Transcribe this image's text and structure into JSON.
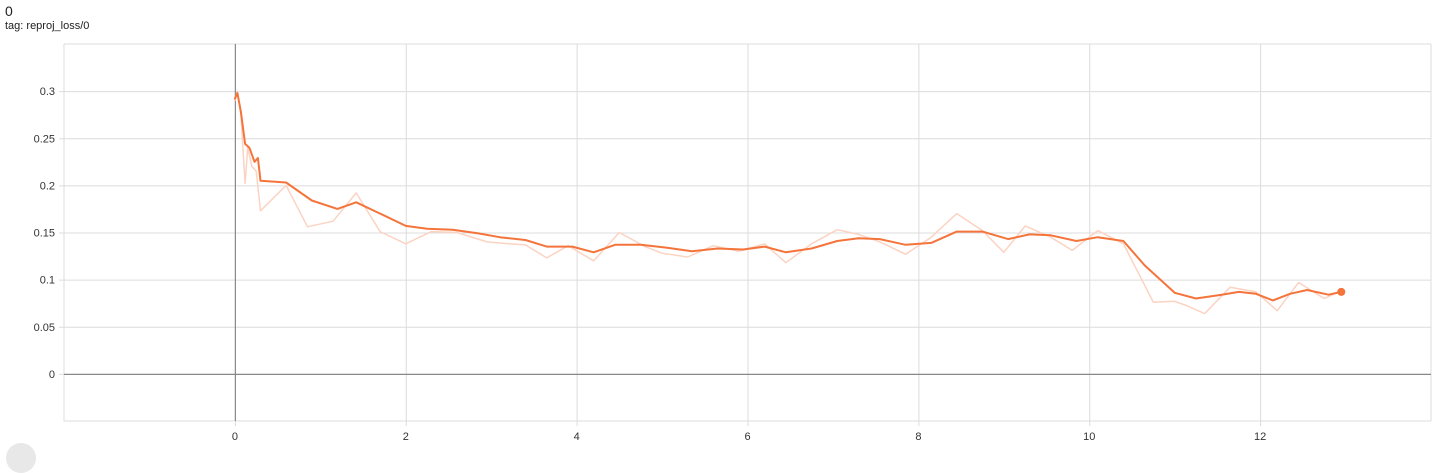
{
  "card": {
    "title": "0",
    "tag": "tag: reproj_loss/0"
  },
  "colors": {
    "smoothed": "#f4743b",
    "raw": "#fbd3c2",
    "grid": "#dcdcdc",
    "axis": "#888888"
  },
  "chart_data": {
    "type": "line",
    "title": "",
    "xlabel": "",
    "ylabel": "",
    "xlim": [
      -2,
      14
    ],
    "ylim": [
      -0.05,
      0.35
    ],
    "xticks": [
      0,
      2,
      4,
      6,
      8,
      10,
      12
    ],
    "yticks": [
      0,
      0.05,
      0.1,
      0.15,
      0.2,
      0.25,
      0.3
    ],
    "xtick_labels": [
      "0",
      "2",
      "4",
      "6",
      "8",
      "10",
      "12"
    ],
    "ytick_labels": [
      "0",
      "0.05",
      "0.1",
      "0.15",
      "0.2",
      "0.25",
      "0.3"
    ],
    "grid": true,
    "series": [
      {
        "role": "raw",
        "x": [
          0.0,
          0.03,
          0.07,
          0.12,
          0.15,
          0.2,
          0.25,
          0.3,
          0.6,
          0.85,
          1.15,
          1.42,
          1.7,
          2.0,
          2.3,
          2.6,
          2.95,
          3.2,
          3.4,
          3.65,
          3.9,
          4.2,
          4.5,
          4.8,
          5.0,
          5.3,
          5.6,
          5.9,
          6.2,
          6.45,
          6.75,
          7.05,
          7.3,
          7.55,
          7.85,
          8.15,
          8.45,
          8.75,
          9.0,
          9.25,
          9.55,
          9.8,
          10.1,
          10.4,
          10.75,
          11.0,
          11.15,
          11.35,
          11.65,
          11.95,
          12.2,
          12.45,
          12.75,
          12.95
        ],
        "y": [
          0.29,
          0.3,
          0.275,
          0.202,
          0.24,
          0.22,
          0.215,
          0.173,
          0.2,
          0.156,
          0.162,
          0.192,
          0.151,
          0.138,
          0.151,
          0.15,
          0.14,
          0.138,
          0.137,
          0.123,
          0.136,
          0.12,
          0.15,
          0.135,
          0.128,
          0.124,
          0.136,
          0.13,
          0.138,
          0.118,
          0.138,
          0.153,
          0.148,
          0.14,
          0.127,
          0.145,
          0.17,
          0.152,
          0.129,
          0.157,
          0.145,
          0.131,
          0.152,
          0.138,
          0.076,
          0.077,
          0.072,
          0.064,
          0.092,
          0.087,
          0.067,
          0.097,
          0.08,
          0.088
        ]
      },
      {
        "role": "smoothed",
        "x": [
          0.0,
          0.03,
          0.07,
          0.12,
          0.17,
          0.23,
          0.27,
          0.3,
          0.6,
          0.9,
          1.2,
          1.42,
          1.7,
          2.0,
          2.25,
          2.55,
          2.85,
          3.1,
          3.4,
          3.65,
          3.95,
          4.2,
          4.45,
          4.75,
          5.05,
          5.35,
          5.65,
          5.95,
          6.2,
          6.45,
          6.75,
          7.05,
          7.3,
          7.55,
          7.85,
          8.15,
          8.45,
          8.75,
          9.05,
          9.3,
          9.55,
          9.85,
          10.1,
          10.4,
          10.65,
          11.0,
          11.25,
          11.55,
          11.75,
          11.95,
          12.15,
          12.35,
          12.55,
          12.8,
          12.95
        ],
        "y": [
          0.292,
          0.298,
          0.278,
          0.244,
          0.24,
          0.225,
          0.229,
          0.205,
          0.203,
          0.184,
          0.175,
          0.182,
          0.17,
          0.157,
          0.154,
          0.153,
          0.149,
          0.145,
          0.142,
          0.135,
          0.135,
          0.129,
          0.137,
          0.137,
          0.134,
          0.13,
          0.133,
          0.132,
          0.135,
          0.129,
          0.133,
          0.141,
          0.144,
          0.143,
          0.137,
          0.139,
          0.151,
          0.151,
          0.143,
          0.148,
          0.147,
          0.141,
          0.145,
          0.141,
          0.115,
          0.086,
          0.08,
          0.084,
          0.087,
          0.085,
          0.078,
          0.085,
          0.089,
          0.084,
          0.087
        ]
      }
    ]
  }
}
